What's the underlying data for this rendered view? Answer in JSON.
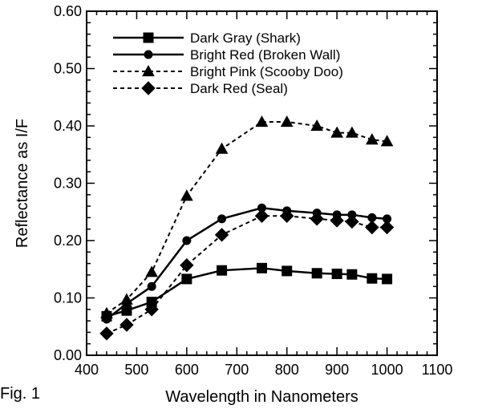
{
  "figure_label": "Fig. 1",
  "chart_data": {
    "type": "line",
    "xlabel": "Wavelength in Nanometers",
    "ylabel": "Reflectance as I/F",
    "xlim": [
      400,
      1100
    ],
    "ylim": [
      0.0,
      0.6
    ],
    "x_ticks": [
      400,
      500,
      600,
      700,
      800,
      900,
      1000,
      1100
    ],
    "y_ticks": [
      "0.00",
      "0.10",
      "0.20",
      "0.30",
      "0.40",
      "0.50",
      "0.60"
    ],
    "legend_position": "top-left",
    "series": [
      {
        "name": "Dark Gray (Shark)",
        "marker": "square",
        "line": "solid",
        "x": [
          440,
          480,
          530,
          600,
          670,
          750,
          800,
          860,
          900,
          930,
          970,
          1000
        ],
        "y": [
          0.068,
          0.078,
          0.093,
          0.133,
          0.148,
          0.152,
          0.147,
          0.143,
          0.142,
          0.141,
          0.134,
          0.133
        ]
      },
      {
        "name": "Bright Red (Broken Wall)",
        "marker": "circle",
        "line": "solid",
        "x": [
          440,
          480,
          530,
          600,
          670,
          750,
          800,
          860,
          900,
          930,
          970,
          1000
        ],
        "y": [
          0.063,
          0.09,
          0.12,
          0.2,
          0.238,
          0.257,
          0.252,
          0.248,
          0.245,
          0.245,
          0.24,
          0.238
        ]
      },
      {
        "name": "Bright Pink (Scooby Doo)",
        "marker": "triangle",
        "line": "dashed",
        "x": [
          440,
          480,
          530,
          600,
          670,
          750,
          800,
          860,
          900,
          930,
          970,
          1000
        ],
        "y": [
          0.073,
          0.097,
          0.145,
          0.278,
          0.36,
          0.407,
          0.407,
          0.4,
          0.388,
          0.388,
          0.376,
          0.373
        ]
      },
      {
        "name": "Dark Red (Seal)",
        "marker": "diamond",
        "line": "dashed",
        "x": [
          440,
          480,
          530,
          600,
          670,
          750,
          800,
          860,
          900,
          930,
          970,
          1000
        ],
        "y": [
          0.038,
          0.053,
          0.08,
          0.157,
          0.21,
          0.243,
          0.243,
          0.238,
          0.235,
          0.233,
          0.223,
          0.223
        ]
      }
    ]
  }
}
